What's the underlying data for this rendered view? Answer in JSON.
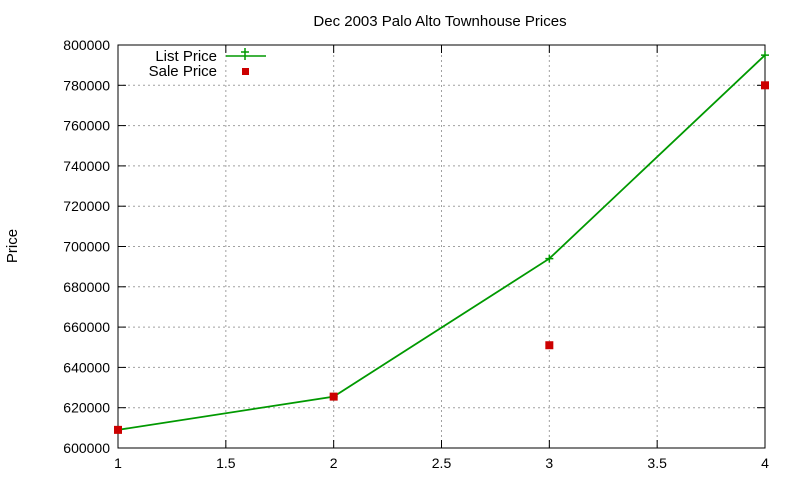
{
  "chart_data": {
    "type": "line",
    "title": "Dec 2003 Palo Alto Townhouse Prices",
    "xlabel": "",
    "ylabel": "Price",
    "xlim": [
      1,
      4
    ],
    "ylim": [
      600000,
      800000
    ],
    "x_ticks": [
      "1",
      "1.5",
      "2",
      "2.5",
      "3",
      "3.5",
      "4"
    ],
    "x_tick_values": [
      1,
      1.5,
      2,
      2.5,
      3,
      3.5,
      4
    ],
    "y_ticks": [
      "600000",
      "620000",
      "640000",
      "660000",
      "680000",
      "700000",
      "720000",
      "740000",
      "760000",
      "780000",
      "800000"
    ],
    "y_tick_values": [
      600000,
      620000,
      640000,
      660000,
      680000,
      700000,
      720000,
      740000,
      760000,
      780000,
      800000
    ],
    "grid": true,
    "legend_position": "top-left",
    "series": [
      {
        "name": "List Price",
        "style": "linespoints",
        "marker": "plus",
        "color": "#009900",
        "x": [
          1,
          2,
          3,
          4
        ],
        "y": [
          609000,
          625500,
          694000,
          795000
        ]
      },
      {
        "name": "Sale Price",
        "style": "points",
        "marker": "square",
        "color": "#cc0000",
        "x": [
          1,
          2,
          3,
          4
        ],
        "y": [
          609000,
          625500,
          651000,
          780000
        ]
      }
    ]
  }
}
